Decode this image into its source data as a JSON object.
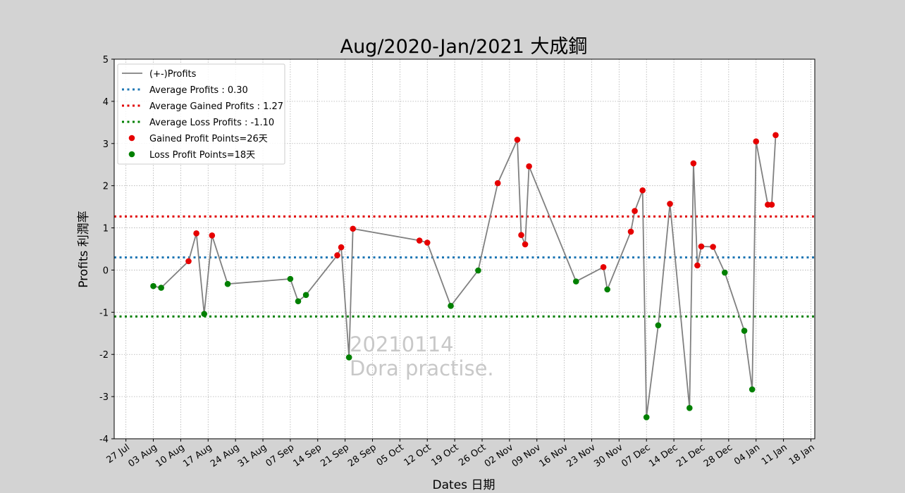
{
  "chart_data": {
    "type": "line",
    "title": "Aug/2020-Jan/2021 大成鋼",
    "xlabel": "Dates 日期",
    "ylabel": "Profits 利潤率",
    "ylim": [
      -4,
      5
    ],
    "xlim": [
      "2020-07-24",
      "2021-01-19"
    ],
    "grid": true,
    "legend_position": "upper-left",
    "y_ticks": [
      "-4",
      "-3",
      "-2",
      "-1",
      "0",
      "1",
      "2",
      "3",
      "4",
      "5"
    ],
    "x_ticks": [
      {
        "date": "2020-07-27",
        "label": "27 Jul"
      },
      {
        "date": "2020-08-03",
        "label": "03 Aug"
      },
      {
        "date": "2020-08-10",
        "label": "10 Aug"
      },
      {
        "date": "2020-08-17",
        "label": "17 Aug"
      },
      {
        "date": "2020-08-24",
        "label": "24 Aug"
      },
      {
        "date": "2020-08-31",
        "label": "31 Aug"
      },
      {
        "date": "2020-09-07",
        "label": "07 Sep"
      },
      {
        "date": "2020-09-14",
        "label": "14 Sep"
      },
      {
        "date": "2020-09-21",
        "label": "21 Sep"
      },
      {
        "date": "2020-09-28",
        "label": "28 Sep"
      },
      {
        "date": "2020-10-05",
        "label": "05 Oct"
      },
      {
        "date": "2020-10-12",
        "label": "12 Oct"
      },
      {
        "date": "2020-10-19",
        "label": "19 Oct"
      },
      {
        "date": "2020-10-26",
        "label": "26 Oct"
      },
      {
        "date": "2020-11-02",
        "label": "02 Nov"
      },
      {
        "date": "2020-11-09",
        "label": "09 Nov"
      },
      {
        "date": "2020-11-16",
        "label": "16 Nov"
      },
      {
        "date": "2020-11-23",
        "label": "23 Nov"
      },
      {
        "date": "2020-11-30",
        "label": "30 Nov"
      },
      {
        "date": "2020-12-07",
        "label": "07 Dec"
      },
      {
        "date": "2020-12-14",
        "label": "14 Dec"
      },
      {
        "date": "2020-12-21",
        "label": "21 Dec"
      },
      {
        "date": "2020-12-28",
        "label": "28 Dec"
      },
      {
        "date": "2021-01-04",
        "label": "04 Jan"
      },
      {
        "date": "2021-01-11",
        "label": "11 Jan"
      },
      {
        "date": "2021-01-18",
        "label": "18 Jan"
      }
    ],
    "series": [
      {
        "name": "(+-)Profits",
        "color": "#808080",
        "points": [
          {
            "date": "2020-08-03",
            "value": -0.38
          },
          {
            "date": "2020-08-05",
            "value": -0.42
          },
          {
            "date": "2020-08-12",
            "value": 0.21
          },
          {
            "date": "2020-08-14",
            "value": 0.87
          },
          {
            "date": "2020-08-16",
            "value": -1.04
          },
          {
            "date": "2020-08-18",
            "value": 0.82
          },
          {
            "date": "2020-08-22",
            "value": -0.33
          },
          {
            "date": "2020-09-07",
            "value": -0.21
          },
          {
            "date": "2020-09-09",
            "value": -0.74
          },
          {
            "date": "2020-09-11",
            "value": -0.59
          },
          {
            "date": "2020-09-19",
            "value": 0.35
          },
          {
            "date": "2020-09-20",
            "value": 0.54
          },
          {
            "date": "2020-09-22",
            "value": -2.07
          },
          {
            "date": "2020-09-23",
            "value": 0.98
          },
          {
            "date": "2020-10-10",
            "value": 0.7
          },
          {
            "date": "2020-10-12",
            "value": 0.65
          },
          {
            "date": "2020-10-18",
            "value": -0.85
          },
          {
            "date": "2020-10-25",
            "value": -0.01
          },
          {
            "date": "2020-10-30",
            "value": 2.06
          },
          {
            "date": "2020-11-04",
            "value": 3.09
          },
          {
            "date": "2020-11-05",
            "value": 0.83
          },
          {
            "date": "2020-11-06",
            "value": 0.61
          },
          {
            "date": "2020-11-07",
            "value": 2.46
          },
          {
            "date": "2020-11-19",
            "value": -0.27
          },
          {
            "date": "2020-11-26",
            "value": 0.07
          },
          {
            "date": "2020-11-27",
            "value": -0.46
          },
          {
            "date": "2020-12-03",
            "value": 0.91
          },
          {
            "date": "2020-12-04",
            "value": 1.4
          },
          {
            "date": "2020-12-06",
            "value": 1.89
          },
          {
            "date": "2020-12-07",
            "value": -3.49
          },
          {
            "date": "2020-12-10",
            "value": -1.31
          },
          {
            "date": "2020-12-13",
            "value": 1.57
          },
          {
            "date": "2020-12-18",
            "value": -3.27
          },
          {
            "date": "2020-12-19",
            "value": 2.53
          },
          {
            "date": "2020-12-20",
            "value": 0.11
          },
          {
            "date": "2020-12-21",
            "value": 0.56
          },
          {
            "date": "2020-12-24",
            "value": 0.55
          },
          {
            "date": "2020-12-27",
            "value": -0.06
          },
          {
            "date": "2021-01-01",
            "value": -1.44
          },
          {
            "date": "2021-01-03",
            "value": -2.83
          },
          {
            "date": "2021-01-04",
            "value": 3.05
          },
          {
            "date": "2021-01-07",
            "value": 1.55
          },
          {
            "date": "2021-01-08",
            "value": 1.55
          },
          {
            "date": "2021-01-09",
            "value": 3.2
          }
        ]
      }
    ],
    "hlines": [
      {
        "name": "Average Profits : 0.30",
        "value": 0.3,
        "color": "#1f77b4"
      },
      {
        "name": "Average Gained Profits : 1.27",
        "value": 1.27,
        "color": "#e00000"
      },
      {
        "name": "Average Loss Profits : -1.10",
        "value": -1.1,
        "color": "#008000"
      }
    ],
    "scatter": [
      {
        "name": "Gained Profit Points=26天",
        "color": "#e60000"
      },
      {
        "name": "Loss Profit Points=18天",
        "color": "#008000"
      }
    ],
    "watermark": [
      "20210114",
      "Dora practise."
    ]
  }
}
